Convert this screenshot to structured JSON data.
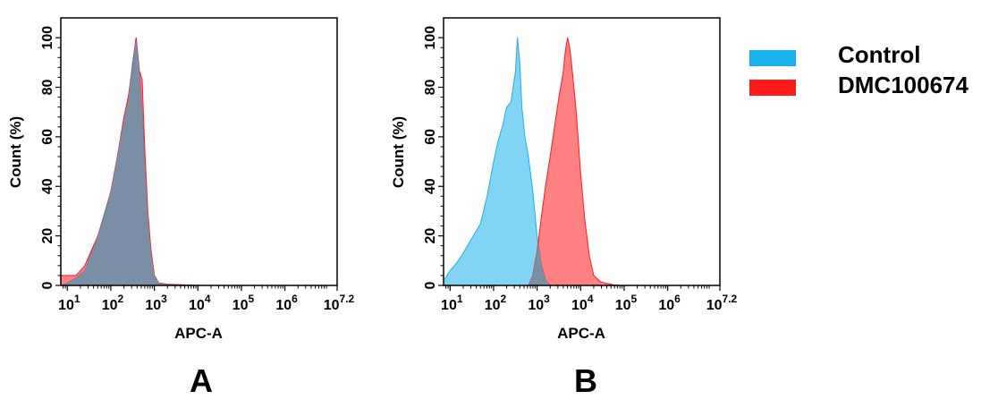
{
  "legend": {
    "items": [
      {
        "label": "Control",
        "color": "#1ab0ea"
      },
      {
        "label": "DMC100674",
        "color": "#ff1a1a"
      }
    ]
  },
  "overlap_color": "#7a8fa6",
  "chart_data": [
    {
      "type": "area",
      "panel_label": "A",
      "title": "",
      "xlabel": "APC-A",
      "ylabel": "Count  (%)",
      "xscale": "log10",
      "xlim": [
        0.85,
        7.2
      ],
      "ylim": [
        0,
        108
      ],
      "x_ticks": [
        {
          "base": "10",
          "exp": "1",
          "pos": 1
        },
        {
          "base": "10",
          "exp": "2",
          "pos": 2
        },
        {
          "base": "10",
          "exp": "3",
          "pos": 3
        },
        {
          "base": "10",
          "exp": "4",
          "pos": 4
        },
        {
          "base": "10",
          "exp": "5",
          "pos": 5
        },
        {
          "base": "10",
          "exp": "6",
          "pos": 6
        },
        {
          "base": "10",
          "exp": "7.2",
          "pos": 7.2
        }
      ],
      "y_ticks": [
        "0",
        "20",
        "40",
        "60",
        "80",
        "100"
      ],
      "series": [
        {
          "name": "Control",
          "color": "#1ab0ea",
          "x": [
            0.85,
            1.0,
            1.2,
            1.4,
            1.55,
            1.7,
            1.85,
            2.0,
            2.15,
            2.3,
            2.4,
            2.5,
            2.58,
            2.65,
            2.72,
            2.78,
            2.85,
            2.92,
            3.0,
            3.1,
            3.3,
            3.6,
            3.9,
            4.2
          ],
          "values": [
            0,
            1,
            3,
            6,
            13,
            20,
            29,
            38,
            52,
            67,
            75,
            90,
            100,
            88,
            70,
            50,
            28,
            14,
            4,
            1,
            0.5,
            0.3,
            0.1,
            0
          ]
        },
        {
          "name": "DMC100674",
          "color": "#ff1a1a",
          "x": [
            0.85,
            1.0,
            1.2,
            1.4,
            1.55,
            1.7,
            1.85,
            2.0,
            2.15,
            2.3,
            2.4,
            2.5,
            2.58,
            2.65,
            2.72,
            2.78,
            2.85,
            2.92,
            3.0,
            3.1,
            3.3,
            3.6,
            3.9,
            4.2
          ],
          "values": [
            4,
            4,
            4,
            8,
            14,
            20,
            28,
            38,
            52,
            68,
            76,
            88,
            100,
            87,
            83,
            55,
            30,
            15,
            4,
            1,
            0.5,
            0.3,
            0.1,
            0
          ]
        }
      ]
    },
    {
      "type": "area",
      "panel_label": "B",
      "title": "",
      "xlabel": "APC-A",
      "ylabel": "Count  (%)",
      "xscale": "log10",
      "xlim": [
        0.85,
        7.2
      ],
      "ylim": [
        0,
        108
      ],
      "x_ticks": [
        {
          "base": "10",
          "exp": "1",
          "pos": 1
        },
        {
          "base": "10",
          "exp": "2",
          "pos": 2
        },
        {
          "base": "10",
          "exp": "3",
          "pos": 3
        },
        {
          "base": "10",
          "exp": "4",
          "pos": 4
        },
        {
          "base": "10",
          "exp": "5",
          "pos": 5
        },
        {
          "base": "10",
          "exp": "6",
          "pos": 6
        },
        {
          "base": "10",
          "exp": "7.2",
          "pos": 7.2
        }
      ],
      "y_ticks": [
        "0",
        "20",
        "40",
        "60",
        "80",
        "100"
      ],
      "series": [
        {
          "name": "Control",
          "color": "#1ab0ea",
          "x": [
            0.85,
            1.0,
            1.15,
            1.3,
            1.5,
            1.7,
            1.85,
            2.0,
            2.1,
            2.2,
            2.3,
            2.4,
            2.5,
            2.55,
            2.6,
            2.65,
            2.72,
            2.8,
            2.9,
            3.0,
            3.1,
            3.2,
            3.3
          ],
          "values": [
            2,
            6,
            9,
            13,
            19,
            25,
            36,
            50,
            58,
            64,
            72,
            74,
            86,
            100,
            90,
            72,
            60,
            52,
            38,
            20,
            8,
            2,
            0
          ]
        },
        {
          "name": "DMC100674",
          "color": "#ff1a1a",
          "x": [
            2.8,
            2.9,
            3.0,
            3.1,
            3.2,
            3.3,
            3.4,
            3.5,
            3.6,
            3.65,
            3.7,
            3.75,
            3.8,
            3.9,
            4.0,
            4.1,
            4.2,
            4.3,
            4.45,
            4.6,
            4.75,
            4.9
          ],
          "values": [
            0,
            4,
            14,
            28,
            41,
            52,
            64,
            76,
            86,
            95,
            100,
            96,
            88,
            70,
            45,
            26,
            12,
            4,
            1.5,
            0.8,
            0.3,
            0
          ]
        }
      ]
    }
  ]
}
